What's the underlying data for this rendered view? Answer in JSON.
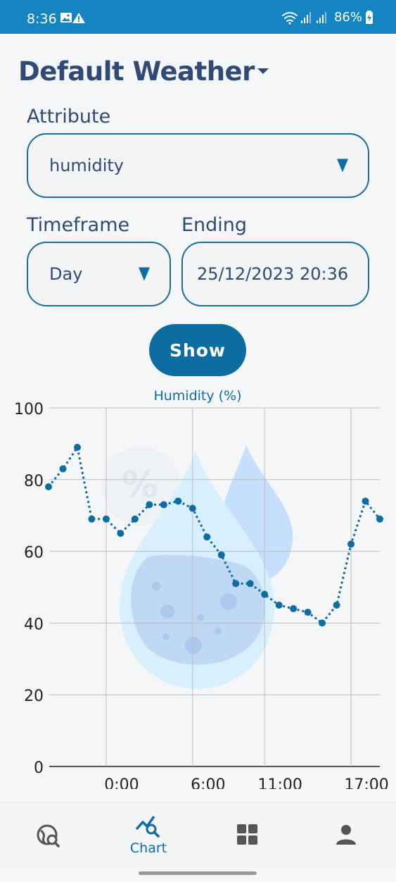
{
  "status_bar": {
    "time": "8:36",
    "battery": "86%",
    "icons": [
      "image-icon",
      "alert-icon",
      "wifi-icon",
      "signal-icon",
      "signal-icon",
      "battery-icon"
    ]
  },
  "header": {
    "title": "Default Weather"
  },
  "form": {
    "attribute_label": "Attribute",
    "attribute_value": "humidity",
    "timeframe_label": "Timeframe",
    "timeframe_value": "Day",
    "ending_label": "Ending",
    "ending_value": "25/12/2023 20:36",
    "show_label": "Show"
  },
  "chart_data": {
    "type": "line",
    "title": "Humidity (%)",
    "xlabel": "",
    "ylabel": "",
    "ylim": [
      0,
      100
    ],
    "yticks": [
      0,
      20,
      40,
      60,
      80,
      100
    ],
    "xtick_labels": [
      "0:00",
      "6:00",
      "11:00",
      "17:00"
    ],
    "series": [
      {
        "name": "Humidity (%)",
        "color": "#0e6da0",
        "values": [
          78,
          83,
          89,
          69,
          69,
          65,
          69,
          73,
          73,
          74,
          72,
          64,
          59,
          51,
          51,
          48,
          45,
          44,
          43,
          40,
          45,
          62,
          74,
          69
        ]
      }
    ]
  },
  "nav": {
    "items": [
      {
        "icon": "globe-search-icon",
        "label": ""
      },
      {
        "icon": "chart-search-icon",
        "label": "Chart"
      },
      {
        "icon": "dashboard-grid-icon",
        "label": ""
      },
      {
        "icon": "person-icon",
        "label": ""
      }
    ]
  },
  "colors": {
    "accent": "#0e6da0",
    "status_bar": "#1584c2",
    "text": "#2f4a75"
  }
}
